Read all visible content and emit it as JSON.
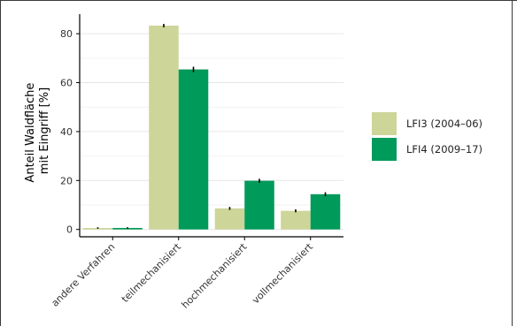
{
  "chart_data": {
    "type": "bar",
    "title": "",
    "xlabel": "",
    "ylabel": [
      "Anteil Waldfläche",
      "mit Eingriff [%]"
    ],
    "ylim": [
      -3,
      88
    ],
    "yticks": [
      0,
      20,
      40,
      60,
      80
    ],
    "grid": true,
    "legend_position": "right",
    "categories": [
      "andere Verfahren",
      "teilmechanisiert",
      "hochmechanisiert",
      "vollmechanisiert"
    ],
    "series": [
      {
        "name": "LFI3 (2004–06)",
        "color": "#cdd598",
        "values": [
          0.6,
          83.3,
          8.6,
          7.6
        ],
        "errors": [
          0.3,
          0.7,
          0.6,
          0.6
        ]
      },
      {
        "name": "LFI4 (2009–17)",
        "color": "#009a5a",
        "values": [
          0.6,
          65.4,
          19.9,
          14.4
        ],
        "errors": [
          0.3,
          1.1,
          0.8,
          0.8
        ]
      }
    ]
  }
}
